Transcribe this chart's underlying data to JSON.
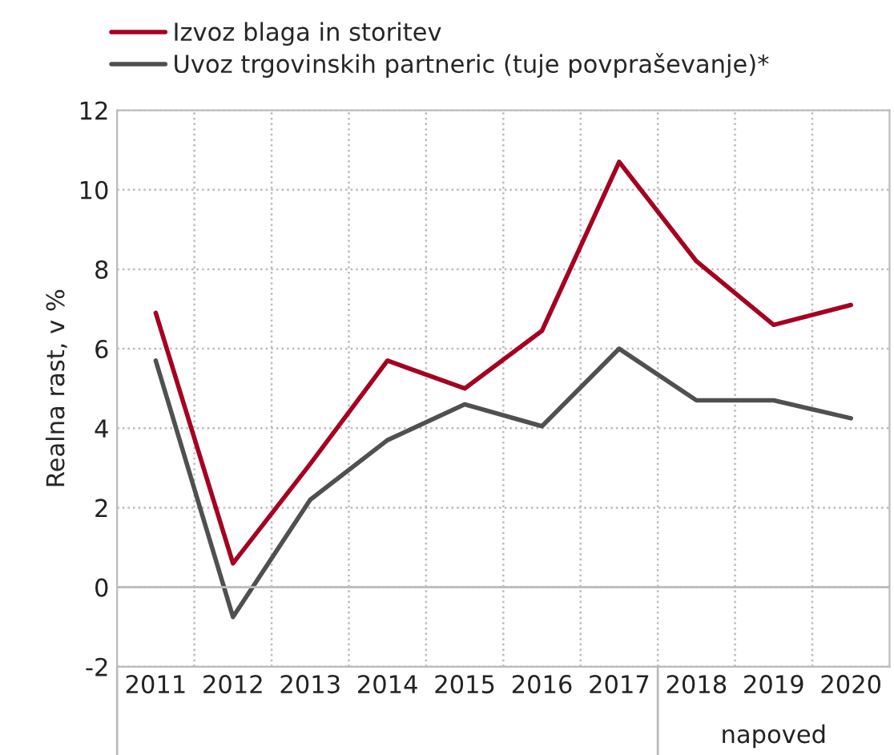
{
  "chart_data": {
    "type": "line",
    "ylabel": "Realna rast, v %",
    "categories": [
      "2011",
      "2012",
      "2013",
      "2014",
      "2015",
      "2016",
      "2017",
      "2018",
      "2019",
      "2020"
    ],
    "series": [
      {
        "name": "Izvoz blaga in storitev",
        "color": "#a50021",
        "values": [
          6.9,
          0.6,
          3.1,
          5.7,
          5.0,
          6.45,
          10.7,
          8.2,
          6.6,
          7.1
        ]
      },
      {
        "name": "Uvoz trgovinskih partneric (tuje povpraševanje)*",
        "color": "#505050",
        "values": [
          5.7,
          -0.75,
          2.2,
          3.7,
          4.6,
          4.05,
          6.0,
          4.7,
          4.7,
          4.25
        ]
      }
    ],
    "ylim": [
      -2,
      12
    ],
    "yticks": [
      -2,
      0,
      2,
      4,
      6,
      8,
      10,
      12
    ],
    "grid": true,
    "legend": "top left",
    "marker": "none",
    "line_style": "solid",
    "annotations": [
      "napoved"
    ]
  }
}
